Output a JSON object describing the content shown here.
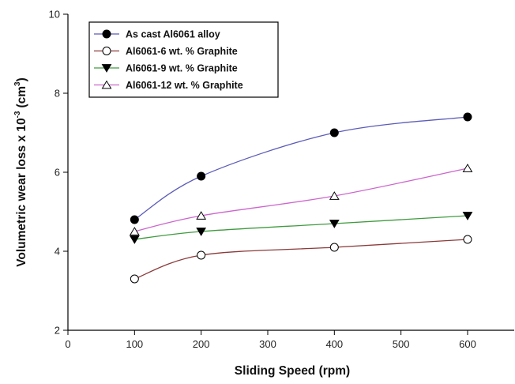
{
  "chart_data": {
    "type": "line",
    "title": "",
    "xlabel": "Sliding Speed (rpm)",
    "ylabel_main": "Volumetric wear loss x 10",
    "ylabel_exp": "-3",
    "ylabel_unit_open": "(cm",
    "ylabel_unit_exp": "3",
    "ylabel_unit_close": ")",
    "xlim": [
      0,
      670
    ],
    "ylim": [
      2,
      10
    ],
    "x_ticks": [
      0,
      100,
      200,
      300,
      400,
      500,
      600
    ],
    "y_ticks": [
      2,
      4,
      6,
      8,
      10
    ],
    "x": [
      100,
      200,
      400,
      600
    ],
    "legend_position": "top-left",
    "grid": false,
    "series": [
      {
        "name": "As cast Al6061 alloy",
        "values": [
          4.8,
          5.9,
          7.0,
          7.4
        ],
        "line_color": "#5b5bb8",
        "marker": "filled-circle",
        "marker_color": "#000000"
      },
      {
        "name": "Al6061-6 wt. % Graphite",
        "values": [
          3.3,
          3.9,
          4.1,
          4.3
        ],
        "line_color": "#8b3a3a",
        "marker": "open-circle",
        "marker_color": "#000000"
      },
      {
        "name": "Al6061-9 wt. % Graphite",
        "values": [
          4.3,
          4.5,
          4.7,
          4.9
        ],
        "line_color": "#3f9a3f",
        "marker": "filled-triangle-down",
        "marker_color": "#000000"
      },
      {
        "name": "Al6061-12 wt. % Graphite",
        "values": [
          4.5,
          4.9,
          5.4,
          6.1
        ],
        "line_color": "#cc66cc",
        "marker": "open-triangle-up",
        "marker_color": "#000000"
      }
    ]
  }
}
